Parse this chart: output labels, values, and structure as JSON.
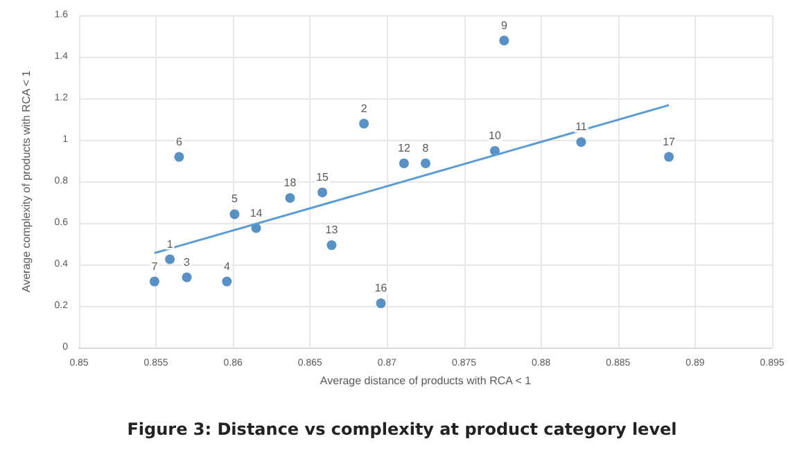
{
  "chart_data": {
    "type": "scatter",
    "title": "Figure 3: Distance vs complexity at product category level",
    "xlabel": "Average distance of products with RCA < 1",
    "ylabel": "Average complexity of products with RCA < 1",
    "xlim": [
      0.85,
      0.895
    ],
    "xticks": [
      0.85,
      0.855,
      0.86,
      0.865,
      0.87,
      0.875,
      0.88,
      0.885,
      0.89,
      0.895
    ],
    "ylim": [
      0,
      1.6
    ],
    "yticks": [
      0,
      0.2,
      0.4,
      0.6,
      0.8,
      1,
      1.2,
      1.4,
      1.6
    ],
    "grid": true,
    "series": [
      {
        "color": "#2e75b6",
        "marker": "circle",
        "x": [
          0.8559,
          0.8685,
          0.857,
          0.8596,
          0.8601,
          0.8565,
          0.8549,
          0.8725,
          0.8776,
          0.877,
          0.8826,
          0.8711,
          0.8664,
          0.8615,
          0.8658,
          0.8696,
          0.8883,
          0.8637
        ],
        "values": [
          0.425,
          1.078,
          0.338,
          0.318,
          0.642,
          0.918,
          0.318,
          0.887,
          1.478,
          0.947,
          0.989,
          0.887,
          0.493,
          0.575,
          0.747,
          0.213,
          0.918,
          0.72
        ]
      },
      {
        "type": "line",
        "color": "#5b9bd5",
        "marker": "none",
        "x": [
          0.8549,
          0.8883
        ],
        "values": [
          0.455,
          1.167
        ]
      }
    ],
    "annotations": [
      {
        "text": "1",
        "x": 0.8559,
        "y": 0.425
      },
      {
        "text": "2",
        "x": 0.8685,
        "y": 1.078
      },
      {
        "text": "3",
        "x": 0.857,
        "y": 0.338
      },
      {
        "text": "4",
        "x": 0.8596,
        "y": 0.318
      },
      {
        "text": "5",
        "x": 0.8601,
        "y": 0.642
      },
      {
        "text": "6",
        "x": 0.8565,
        "y": 0.918
      },
      {
        "text": "7",
        "x": 0.8549,
        "y": 0.318
      },
      {
        "text": "8",
        "x": 0.8725,
        "y": 0.887
      },
      {
        "text": "9",
        "x": 0.8776,
        "y": 1.478
      },
      {
        "text": "10",
        "x": 0.877,
        "y": 0.947
      },
      {
        "text": "11",
        "x": 0.8826,
        "y": 0.989
      },
      {
        "text": "12",
        "x": 0.8711,
        "y": 0.887
      },
      {
        "text": "13",
        "x": 0.8664,
        "y": 0.493
      },
      {
        "text": "14",
        "x": 0.8615,
        "y": 0.575
      },
      {
        "text": "15",
        "x": 0.8658,
        "y": 0.747
      },
      {
        "text": "16",
        "x": 0.8696,
        "y": 0.213
      },
      {
        "text": "17",
        "x": 0.8883,
        "y": 0.918
      },
      {
        "text": "18",
        "x": 0.8637,
        "y": 0.72
      }
    ]
  }
}
